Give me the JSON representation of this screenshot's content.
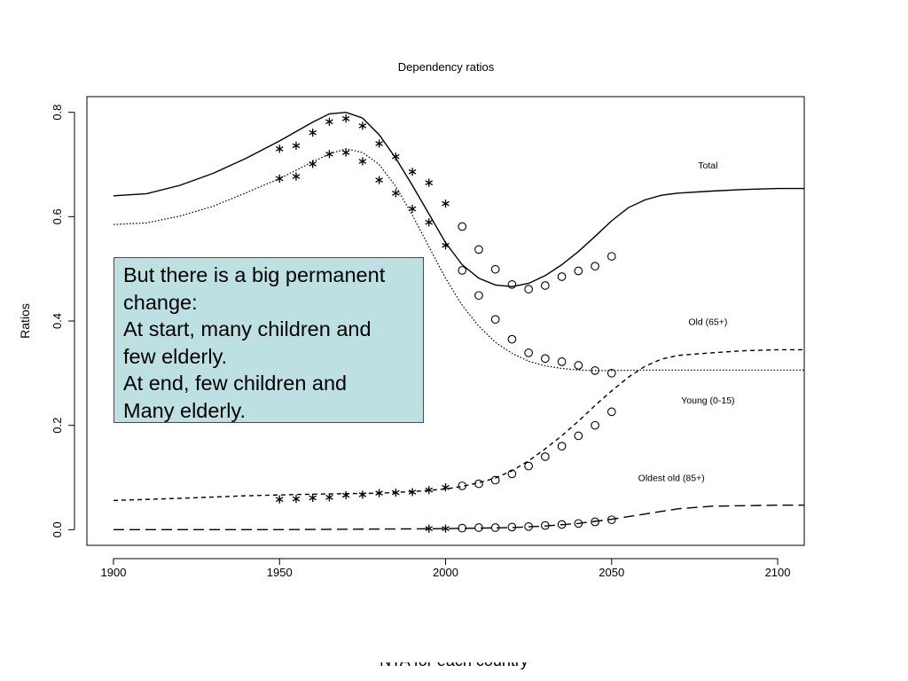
{
  "chart_data": {
    "type": "line",
    "title": "Dependency ratios",
    "xlabel": "",
    "ylabel": "Ratios",
    "xlim": [
      1892,
      2108
    ],
    "ylim": [
      -0.03,
      0.83
    ],
    "xticks": [
      1900,
      1950,
      2000,
      2050,
      2100
    ],
    "yticks": [
      0.0,
      0.2,
      0.4,
      0.6,
      0.8
    ],
    "grid": false,
    "labels": [
      {
        "text": "Total",
        "x": 2079,
        "y": 0.699
      },
      {
        "text": "Old (65+)",
        "x": 2079,
        "y": 0.399
      },
      {
        "text": "Young (0-15)",
        "x": 2079,
        "y": 0.249
      },
      {
        "text": "Oldest old (85+)",
        "x": 2068,
        "y": 0.1
      }
    ],
    "series": [
      {
        "line": "solid",
        "x": [
          1900,
          1910,
          1920,
          1930,
          1940,
          1950,
          1960,
          1965,
          1970,
          1975,
          1980,
          1985,
          1990,
          1995,
          2000,
          2005,
          2010,
          2015,
          2020,
          2025,
          2030,
          2035,
          2040,
          2045,
          2050,
          2055,
          2060,
          2065,
          2070,
          2080,
          2090,
          2100,
          2108
        ],
        "y": [
          0.64,
          0.644,
          0.66,
          0.683,
          0.712,
          0.745,
          0.781,
          0.797,
          0.8,
          0.789,
          0.757,
          0.712,
          0.66,
          0.605,
          0.55,
          0.508,
          0.482,
          0.469,
          0.466,
          0.472,
          0.487,
          0.508,
          0.533,
          0.562,
          0.592,
          0.617,
          0.632,
          0.641,
          0.645,
          0.649,
          0.652,
          0.654,
          0.654
        ]
      },
      {
        "line": "dotted",
        "x": [
          1900,
          1910,
          1920,
          1930,
          1940,
          1950,
          1960,
          1965,
          1970,
          1975,
          1980,
          1985,
          1990,
          1995,
          2000,
          2005,
          2010,
          2015,
          2020,
          2025,
          2030,
          2035,
          2040,
          2045,
          2050,
          2060,
          2080,
          2108
        ],
        "y": [
          0.585,
          0.588,
          0.601,
          0.62,
          0.646,
          0.673,
          0.705,
          0.72,
          0.73,
          0.723,
          0.7,
          0.658,
          0.603,
          0.542,
          0.482,
          0.43,
          0.39,
          0.359,
          0.338,
          0.323,
          0.314,
          0.309,
          0.306,
          0.305,
          0.305,
          0.306,
          0.306,
          0.306
        ]
      },
      {
        "line": "short-dashed",
        "x": [
          1900,
          1920,
          1940,
          1960,
          1980,
          1990,
          2000,
          2005,
          2010,
          2015,
          2020,
          2025,
          2030,
          2035,
          2040,
          2045,
          2050,
          2055,
          2060,
          2065,
          2070,
          2080,
          2090,
          2100,
          2108
        ],
        "y": [
          0.056,
          0.06,
          0.065,
          0.068,
          0.07,
          0.073,
          0.078,
          0.083,
          0.09,
          0.099,
          0.113,
          0.132,
          0.155,
          0.18,
          0.208,
          0.238,
          0.266,
          0.292,
          0.313,
          0.327,
          0.334,
          0.339,
          0.343,
          0.345,
          0.345
        ]
      },
      {
        "line": "long-dashed",
        "x": [
          1900,
          1950,
          2000,
          2010,
          2020,
          2030,
          2040,
          2050,
          2060,
          2070,
          2080,
          2090,
          2100,
          2108
        ],
        "y": [
          0.0,
          0.0,
          0.002,
          0.003,
          0.004,
          0.007,
          0.012,
          0.02,
          0.03,
          0.04,
          0.045,
          0.046,
          0.047,
          0.047
        ]
      },
      {
        "marker": "asterisk",
        "x": [
          1950,
          1955,
          1960,
          1965,
          1970,
          1975,
          1980,
          1985,
          1990,
          1995,
          2000
        ],
        "y": [
          0.73,
          0.736,
          0.761,
          0.782,
          0.788,
          0.774,
          0.74,
          0.715,
          0.686,
          0.665,
          0.625
        ]
      },
      {
        "marker": "asterisk",
        "x": [
          1950,
          1955,
          1960,
          1965,
          1970,
          1975,
          1980,
          1985,
          1990,
          1995,
          2000
        ],
        "y": [
          0.673,
          0.677,
          0.701,
          0.72,
          0.723,
          0.706,
          0.67,
          0.645,
          0.615,
          0.589,
          0.545
        ]
      },
      {
        "marker": "asterisk",
        "x": [
          1950,
          1955,
          1960,
          1965,
          1970,
          1975,
          1980,
          1985,
          1990,
          1995,
          2000
        ],
        "y": [
          0.058,
          0.059,
          0.061,
          0.062,
          0.066,
          0.067,
          0.07,
          0.071,
          0.072,
          0.076,
          0.081
        ]
      },
      {
        "marker": "asterisk",
        "x": [
          1995,
          2000
        ],
        "y": [
          0.002,
          0.002
        ]
      },
      {
        "marker": "circle",
        "x": [
          2005,
          2010,
          2015,
          2020,
          2025,
          2030,
          2035,
          2040,
          2045,
          2050
        ],
        "y": [
          0.581,
          0.537,
          0.499,
          0.47,
          0.461,
          0.468,
          0.485,
          0.496,
          0.505,
          0.524
        ]
      },
      {
        "marker": "circle",
        "x": [
          2005,
          2010,
          2015,
          2020,
          2025,
          2030,
          2035,
          2040,
          2045,
          2050
        ],
        "y": [
          0.497,
          0.449,
          0.403,
          0.365,
          0.339,
          0.328,
          0.322,
          0.315,
          0.305,
          0.3
        ]
      },
      {
        "marker": "circle",
        "x": [
          2005,
          2010,
          2015,
          2020,
          2025,
          2030,
          2035,
          2040,
          2045,
          2050
        ],
        "y": [
          0.084,
          0.088,
          0.095,
          0.107,
          0.122,
          0.14,
          0.16,
          0.18,
          0.2,
          0.226
        ]
      },
      {
        "marker": "circle",
        "x": [
          2005,
          2010,
          2015,
          2020,
          2025,
          2030,
          2035,
          2040,
          2045,
          2050
        ],
        "y": [
          0.003,
          0.004,
          0.004,
          0.005,
          0.006,
          0.008,
          0.01,
          0.012,
          0.015,
          0.019
        ]
      }
    ]
  },
  "callout": {
    "lines": [
      "But there is a big permanent",
      "change:",
      "At start, many children and",
      "few elderly.",
      "At end, few children and",
      "Many elderly."
    ]
  },
  "footer": {
    "text": "NTA for each country"
  }
}
